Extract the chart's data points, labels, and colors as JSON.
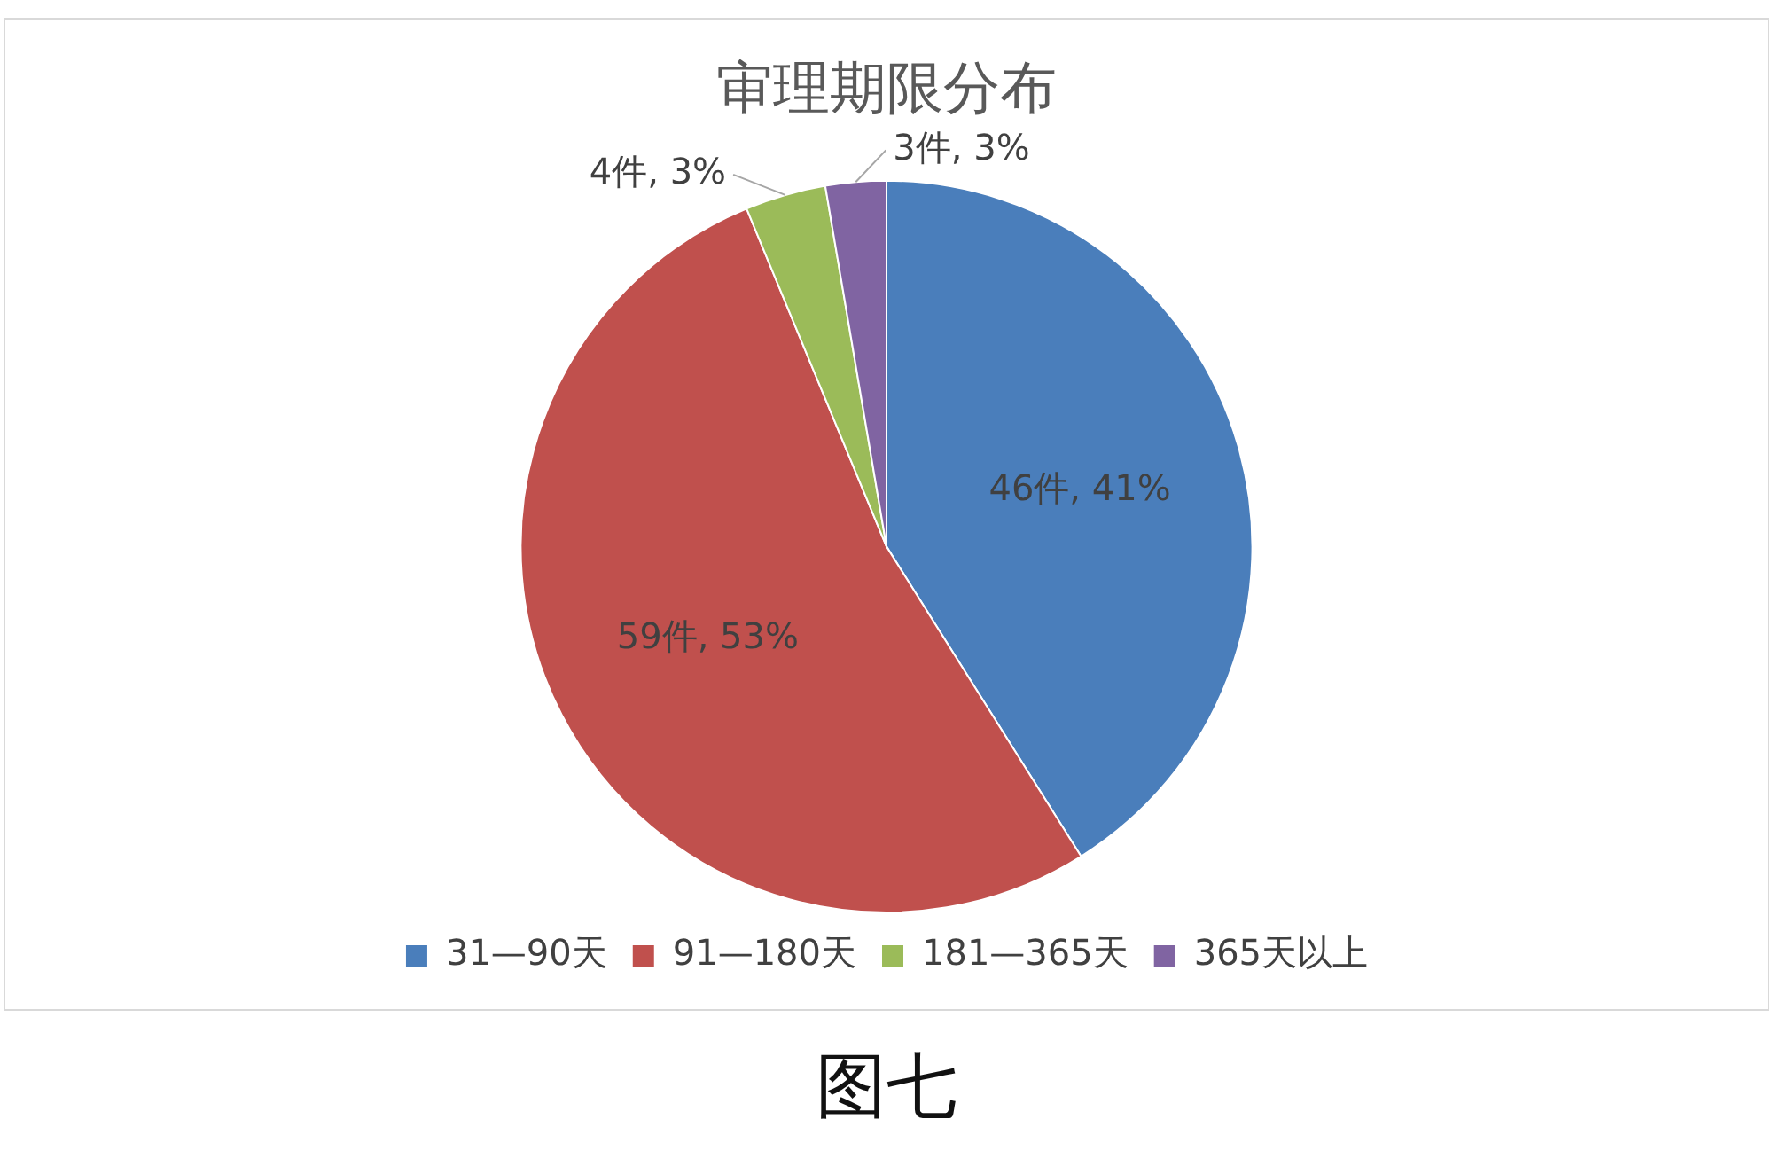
{
  "chart_data": {
    "type": "pie",
    "title": "审理期限分布",
    "categories": [
      "31—90天",
      "91—180天",
      "181—365天",
      "365天以上"
    ],
    "values": [
      46,
      59,
      4,
      3
    ],
    "colors": [
      "#4a7ebb",
      "#c0504d",
      "#9bbb59",
      "#8064a2"
    ],
    "value_labels": [
      "46件, 41%",
      "59件, 53%",
      "4件, 3%",
      "3件, 3%"
    ],
    "legend": "bottom",
    "annotations": [
      "图七"
    ]
  }
}
